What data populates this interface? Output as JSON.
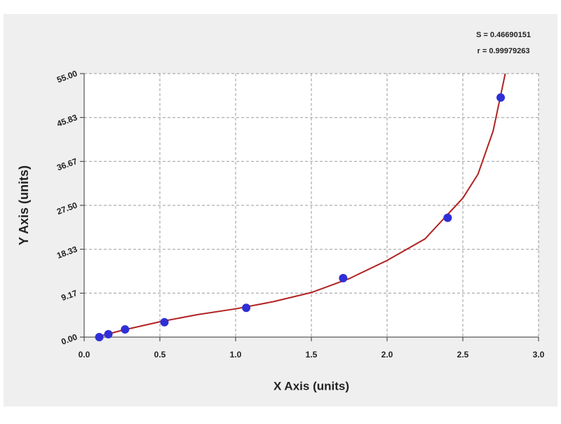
{
  "chart_data": {
    "type": "scatter",
    "x_label": "X Axis (units)",
    "y_label": "Y Axis (units)",
    "annotations": [
      "S = 0.46690151",
      "r = 0.99979263"
    ],
    "x": [
      0.1,
      0.16,
      0.27,
      0.53,
      1.07,
      1.71,
      2.4,
      2.75
    ],
    "values": [
      0.0,
      0.6,
      1.6,
      3.1,
      6.1,
      12.3,
      24.9,
      50.0
    ],
    "color": "#2f2fd6",
    "fit": {
      "x": [
        0.08,
        0.25,
        0.5,
        0.75,
        1.0,
        1.25,
        1.5,
        1.75,
        2.0,
        2.25,
        2.5,
        2.6,
        2.7,
        2.78
      ],
      "values": [
        0.0,
        1.4,
        3.2,
        4.7,
        5.9,
        7.4,
        9.3,
        12.2,
        16.0,
        20.5,
        29.0,
        34.0,
        43.0,
        55.0
      ],
      "color": "#b22222"
    },
    "xlim": [
      0,
      3
    ],
    "ylim": [
      0,
      55
    ],
    "xticks": [
      {
        "value": 0,
        "label": "0.0"
      },
      0.5,
      {
        "value": 1,
        "label": "1.0"
      },
      1.5,
      {
        "value": 2,
        "label": "2.0"
      },
      2.5,
      {
        "value": 3,
        "label": "3.0"
      }
    ],
    "yticks": [
      {
        "value": 0,
        "label": "0.00"
      },
      9.17,
      18.33,
      {
        "value": 27.5,
        "label": "27.50"
      },
      36.67,
      45.83,
      {
        "value": 55,
        "label": "55.00"
      }
    ],
    "grid": true
  }
}
